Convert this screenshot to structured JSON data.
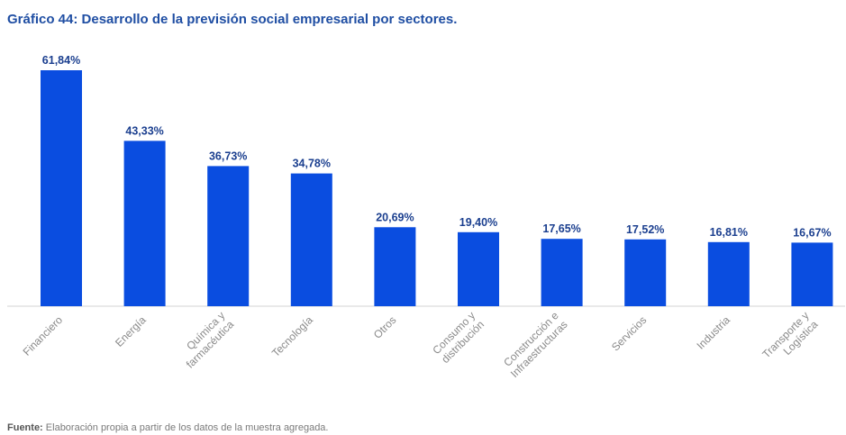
{
  "page": {
    "title": "Gráfico 44: Desarrollo de la previsión social empresarial por sectores.",
    "footer_label": "Fuente:",
    "footer_text": " Elaboración propia a partir de los datos de la muestra agregada."
  },
  "colors": {
    "bar": "#0a4de0",
    "value_label": "#1b3f8f",
    "category_label": "#8a8a8a",
    "axis": "#d3d3d3",
    "title": "#1f4ea3"
  },
  "chart_data": {
    "type": "bar",
    "title": "Gráfico 44: Desarrollo de la previsión social empresarial por sectores.",
    "xlabel": "",
    "ylabel": "",
    "ylim": [
      0,
      70
    ],
    "grid": false,
    "legend": "none",
    "categories": [
      [
        "Financiero"
      ],
      [
        "Energía"
      ],
      [
        "Química y",
        "farmacéutica"
      ],
      [
        "Tecnología"
      ],
      [
        "Otros"
      ],
      [
        "Consumo y",
        "distribución"
      ],
      [
        "Construcción e",
        "Infraestructuras"
      ],
      [
        "Servicios"
      ],
      [
        "Industria"
      ],
      [
        "Transporte y",
        "Logística"
      ]
    ],
    "values": [
      61.84,
      43.33,
      36.73,
      34.78,
      20.69,
      19.4,
      17.65,
      17.52,
      16.81,
      16.67
    ],
    "value_labels": [
      "61,84%",
      "43,33%",
      "36,73%",
      "34,78%",
      "20,69%",
      "19,40%",
      "17,65%",
      "17,52%",
      "16,81%",
      "16,67%"
    ]
  }
}
